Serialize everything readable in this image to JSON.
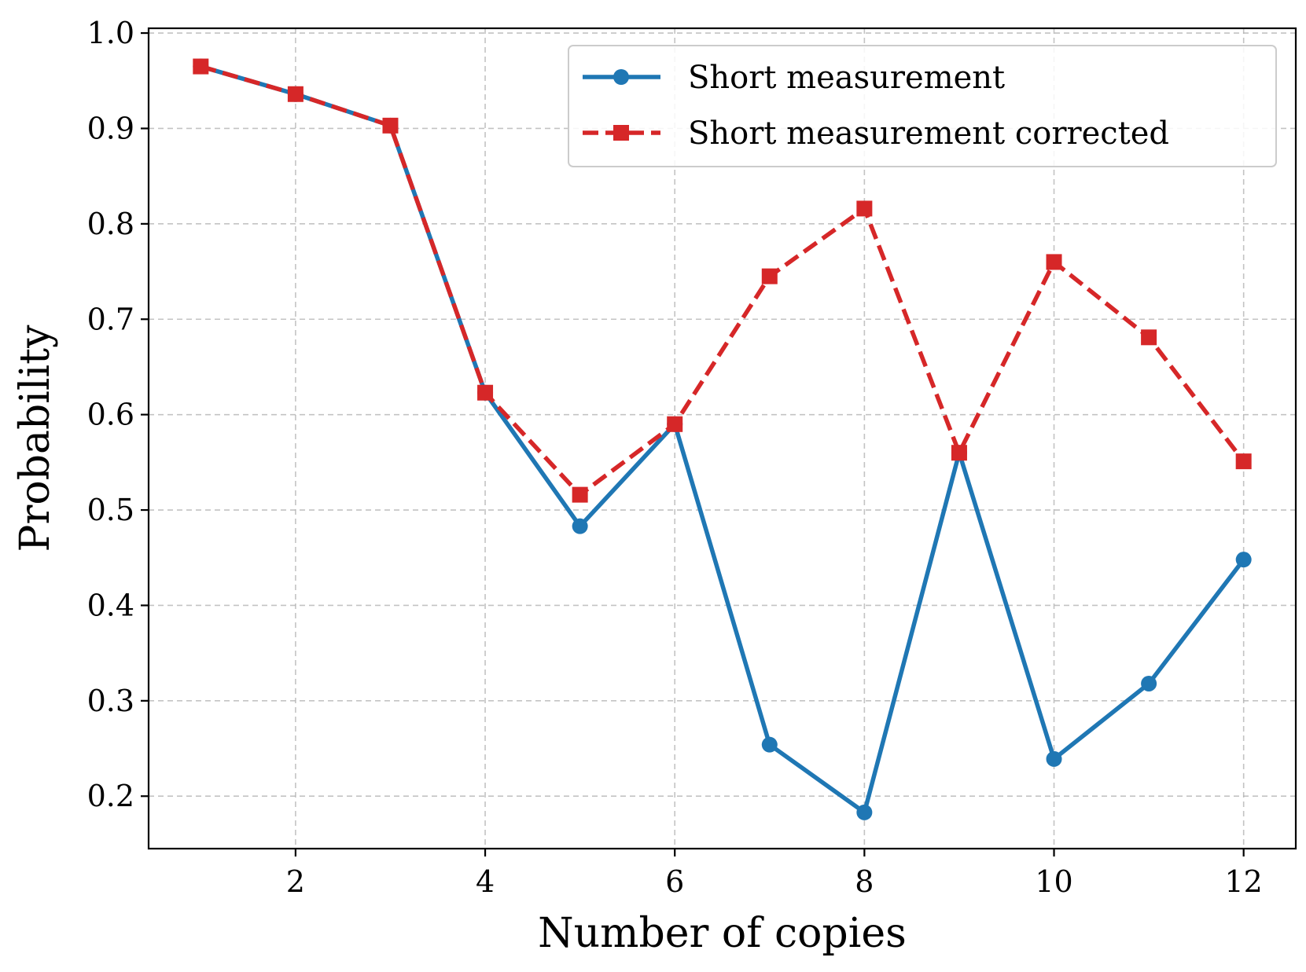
{
  "chart_data": {
    "type": "line",
    "title": "",
    "xlabel": "Number of copies",
    "ylabel": "Probability",
    "x": [
      1,
      2,
      3,
      4,
      5,
      6,
      7,
      8,
      9,
      10,
      11,
      12
    ],
    "xlim": [
      0.45,
      12.55
    ],
    "ylim": [
      0.145,
      1.005
    ],
    "xticks": [
      2,
      4,
      6,
      8,
      10,
      12
    ],
    "xtick_labels": [
      "2",
      "4",
      "6",
      "8",
      "10",
      "12"
    ],
    "yticks": [
      0.2,
      0.3,
      0.4,
      0.5,
      0.6,
      0.7,
      0.8,
      0.9,
      1.0
    ],
    "ytick_labels": [
      "0.2",
      "0.3",
      "0.4",
      "0.5",
      "0.6",
      "0.7",
      "0.8",
      "0.9",
      "1.0"
    ],
    "grid": true,
    "legend_position": "top-right",
    "series": [
      {
        "name": "Short measurement",
        "color": "#1f77b4",
        "line_style": "solid",
        "marker": "circle",
        "values": [
          0.965,
          0.936,
          0.903,
          0.623,
          0.483,
          0.59,
          0.254,
          0.183,
          0.56,
          0.239,
          0.318,
          0.448
        ]
      },
      {
        "name": "Short measurement corrected",
        "color": "#d62728",
        "line_style": "dashed",
        "marker": "square",
        "values": [
          0.965,
          0.936,
          0.903,
          0.623,
          0.516,
          0.59,
          0.745,
          0.816,
          0.56,
          0.76,
          0.681,
          0.551
        ]
      }
    ]
  }
}
